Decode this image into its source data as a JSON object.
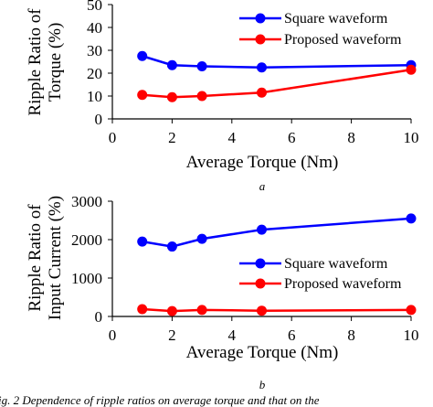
{
  "figure": {
    "caption_fragment": "ig. 2 Dependence of ripple ratios on average torque and that on the"
  },
  "chart_data": [
    {
      "type": "line",
      "subplot_label": "a",
      "title": "",
      "xlabel": "Average Torque (Nm)",
      "ylabel_lines": [
        "Ripple Ratio of",
        "Torque (%)"
      ],
      "xlim": [
        0,
        10
      ],
      "ylim": [
        0,
        50
      ],
      "xticks": [
        0,
        2,
        4,
        6,
        8,
        10
      ],
      "yticks": [
        0,
        10,
        20,
        30,
        40,
        50
      ],
      "grid": false,
      "legend_position": "top-right",
      "series": [
        {
          "name": "Square waveform",
          "color": "#0000ff",
          "x": [
            1,
            2,
            3,
            5,
            10
          ],
          "y": [
            27.5,
            23.5,
            23,
            22.5,
            23.5
          ]
        },
        {
          "name": "Proposed waveform",
          "color": "#ff0000",
          "x": [
            1,
            2,
            3,
            5,
            10
          ],
          "y": [
            10.5,
            9.5,
            10,
            11.5,
            21.5
          ]
        }
      ]
    },
    {
      "type": "line",
      "subplot_label": "b",
      "title": "",
      "xlabel": "Average Torque (Nm)",
      "ylabel_lines": [
        "Ripple Ratio of",
        "Input Current (%)"
      ],
      "xlim": [
        0,
        10
      ],
      "ylim": [
        0,
        3000
      ],
      "xticks": [
        0,
        2,
        4,
        6,
        8,
        10
      ],
      "yticks": [
        0,
        1000,
        2000,
        3000
      ],
      "grid": false,
      "legend_position": "center-right",
      "series": [
        {
          "name": "Square waveform",
          "color": "#0000ff",
          "x": [
            1,
            2,
            3,
            5,
            10
          ],
          "y": [
            1950,
            1820,
            2020,
            2260,
            2550
          ]
        },
        {
          "name": "Proposed waveform",
          "color": "#ff0000",
          "x": [
            1,
            2,
            3,
            5,
            10
          ],
          "y": [
            190,
            140,
            170,
            150,
            170
          ]
        }
      ]
    }
  ]
}
